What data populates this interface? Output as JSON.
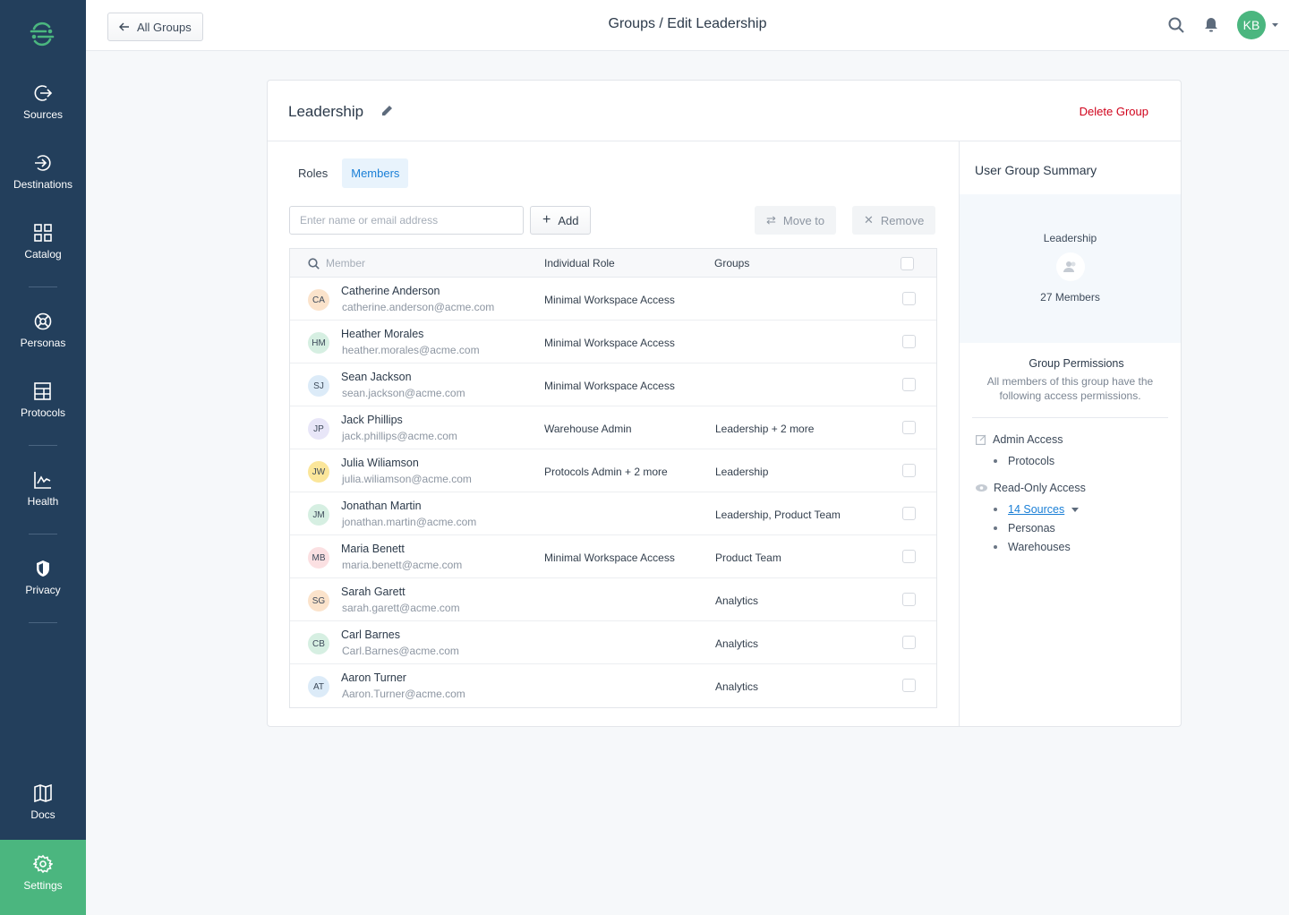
{
  "sidebar": {
    "items": [
      {
        "label": "Sources",
        "icon": "sources-icon"
      },
      {
        "label": "Destinations",
        "icon": "destinations-icon"
      },
      {
        "label": "Catalog",
        "icon": "catalog-icon"
      },
      {
        "label": "Personas",
        "icon": "personas-icon"
      },
      {
        "label": "Protocols",
        "icon": "protocols-icon"
      },
      {
        "label": "Health",
        "icon": "health-icon"
      },
      {
        "label": "Privacy",
        "icon": "privacy-icon"
      },
      {
        "label": "Docs",
        "icon": "docs-icon"
      },
      {
        "label": "Settings",
        "icon": "settings-icon",
        "active": true
      }
    ],
    "accent": "#4bb67f",
    "background": "#233f5c"
  },
  "header": {
    "back_label": "All Groups",
    "title": "Groups / Edit Leadership",
    "user_initials": "KB"
  },
  "group": {
    "name": "Leadership",
    "delete_label": "Delete Group"
  },
  "tabs": [
    {
      "label": "Roles"
    },
    {
      "label": "Members",
      "active": true
    }
  ],
  "toolbar": {
    "input_placeholder": "Enter name or email address",
    "add_label": "Add",
    "move_label": "Move to",
    "remove_label": "Remove"
  },
  "table": {
    "columns": [
      "Member",
      "Individual Role",
      "Groups"
    ],
    "rows": [
      {
        "initials": "CA",
        "color": "#fbe3cb",
        "name": "Catherine Anderson",
        "email": "catherine.anderson@acme.com",
        "role": "Minimal Workspace Access",
        "groups": ""
      },
      {
        "initials": "HM",
        "color": "#d6efe2",
        "name": "Heather Morales",
        "email": "heather.morales@acme.com",
        "role": "Minimal Workspace Access",
        "groups": ""
      },
      {
        "initials": "SJ",
        "color": "#dcebf8",
        "name": "Sean Jackson",
        "email": "sean.jackson@acme.com",
        "role": "Minimal Workspace Access",
        "groups": ""
      },
      {
        "initials": "JP",
        "color": "#e8e6f8",
        "name": "Jack Phillips",
        "email": "jack.phillips@acme.com",
        "role": "Warehouse Admin",
        "groups": "Leadership + 2 more"
      },
      {
        "initials": "JW",
        "color": "#fbe69a",
        "name": "Julia Wiliamson",
        "email": "julia.wiliamson@acme.com",
        "role": "Protocols Admin + 2 more",
        "groups": "Leadership"
      },
      {
        "initials": "JM",
        "color": "#d6efe2",
        "name": "Jonathan Martin",
        "email": "jonathan.martin@acme.com",
        "role": "",
        "groups": "Leadership, Product Team"
      },
      {
        "initials": "MB",
        "color": "#fbe0e2",
        "name": "Maria Benett",
        "email": "maria.benett@acme.com",
        "role": "Minimal Workspace Access",
        "groups": "Product Team"
      },
      {
        "initials": "SG",
        "color": "#fbe3cb",
        "name": "Sarah Garett",
        "email": "sarah.garett@acme.com",
        "role": "",
        "groups": "Analytics"
      },
      {
        "initials": "CB",
        "color": "#d6efe2",
        "name": "Carl Barnes",
        "email": "Carl.Barnes@acme.com",
        "role": "",
        "groups": "Analytics"
      },
      {
        "initials": "AT",
        "color": "#dcebf8",
        "name": "Aaron Turner",
        "email": "Aaron.Turner@acme.com",
        "role": "",
        "groups": "Analytics"
      }
    ]
  },
  "summary": {
    "title": "User Group Summary",
    "group_name": "Leadership",
    "members": "27 Members",
    "perm_title": "Group Permissions",
    "perm_desc": "All members of this group have the following access permissions.",
    "admin_label": "Admin Access",
    "admin_items": [
      "Protocols"
    ],
    "readonly_label": "Read-Only Access",
    "readonly_items": [
      "14 Sources",
      "Personas",
      "Warehouses"
    ]
  }
}
